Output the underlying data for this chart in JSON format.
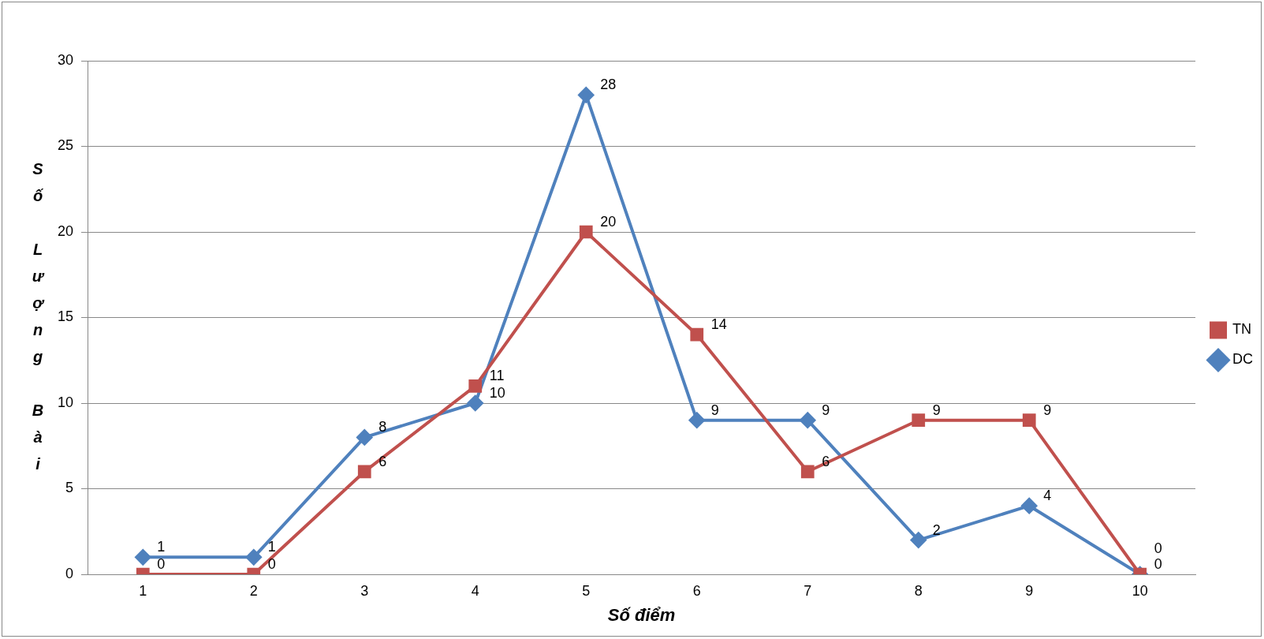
{
  "chart_data": {
    "type": "line",
    "xlabel": "Số điểm",
    "ylabel": "Số Lượng Bài",
    "categories": [
      "1",
      "2",
      "3",
      "4",
      "5",
      "6",
      "7",
      "8",
      "9",
      "10"
    ],
    "series": [
      {
        "name": "TN",
        "color": "#c0504d",
        "marker": "square",
        "values": [
          0,
          0,
          6,
          11,
          20,
          14,
          6,
          9,
          9,
          0
        ]
      },
      {
        "name": "DC",
        "color": "#4f81bd",
        "marker": "diamond",
        "values": [
          1,
          1,
          8,
          10,
          28,
          9,
          9,
          2,
          4,
          0
        ]
      }
    ],
    "ylim": [
      0,
      30
    ],
    "yticks": [
      0,
      5,
      10,
      15,
      20,
      25,
      30
    ],
    "grid": "y",
    "legend": "right",
    "data_labels": true,
    "line_style": "solid"
  }
}
